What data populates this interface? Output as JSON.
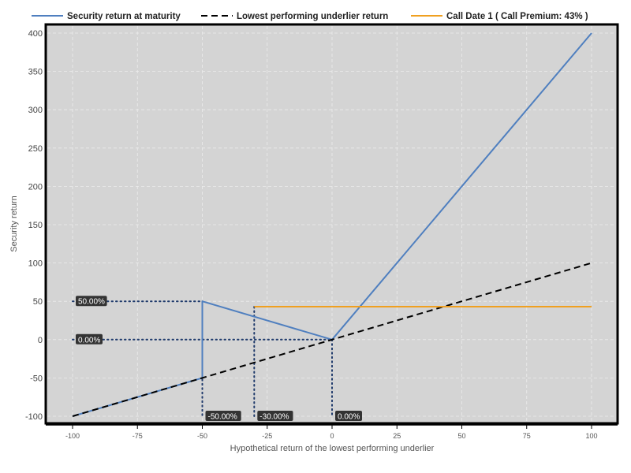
{
  "chart_data": {
    "type": "line",
    "xlabel": "Hypothetical return of the lowest performing underlier",
    "ylabel": "Security return",
    "xlim": [
      -100,
      100
    ],
    "ylim": [
      -100,
      400
    ],
    "x_ticks": [
      -100,
      -75,
      -50,
      -25,
      0,
      25,
      50,
      75,
      100
    ],
    "y_ticks": [
      -100,
      -50,
      0,
      50,
      100,
      150,
      200,
      250,
      300,
      350,
      400
    ],
    "grid": true,
    "legend_placement": "top",
    "series": [
      {
        "name": "Security return at maturity",
        "color": "#4f7fbf",
        "style": "solid",
        "points": [
          [
            -100,
            -100
          ],
          [
            -50,
            -50
          ],
          [
            -50,
            50
          ],
          [
            0,
            0
          ],
          [
            100,
            400
          ]
        ]
      },
      {
        "name": "Lowest performing underlier return",
        "color": "#000000",
        "style": "dashed",
        "points": [
          [
            -100,
            -100
          ],
          [
            100,
            100
          ]
        ]
      },
      {
        "name": "Call Date 1 ( Call Premium: 43% )",
        "color": "#f0a020",
        "style": "solid",
        "points": [
          [
            -30,
            43
          ],
          [
            100,
            43
          ]
        ]
      }
    ],
    "guides": [
      {
        "points": [
          [
            -100,
            50
          ],
          [
            -50,
            50
          ]
        ]
      },
      {
        "points": [
          [
            -100,
            0
          ],
          [
            0,
            0
          ]
        ]
      },
      {
        "points": [
          [
            -50,
            50
          ],
          [
            -50,
            -100
          ]
        ]
      },
      {
        "points": [
          [
            -30,
            43
          ],
          [
            -30,
            -100
          ]
        ]
      },
      {
        "points": [
          [
            0,
            0
          ],
          [
            0,
            -100
          ]
        ]
      }
    ],
    "annotations": [
      {
        "text": "50.00%",
        "x": -100,
        "y": 50
      },
      {
        "text": "0.00%",
        "x": -100,
        "y": 0
      },
      {
        "text": "-50.00%",
        "x": -50,
        "y": -100
      },
      {
        "text": "-30.00%",
        "x": -30,
        "y": -100
      },
      {
        "text": "0.00%",
        "x": 0,
        "y": -100
      }
    ]
  }
}
